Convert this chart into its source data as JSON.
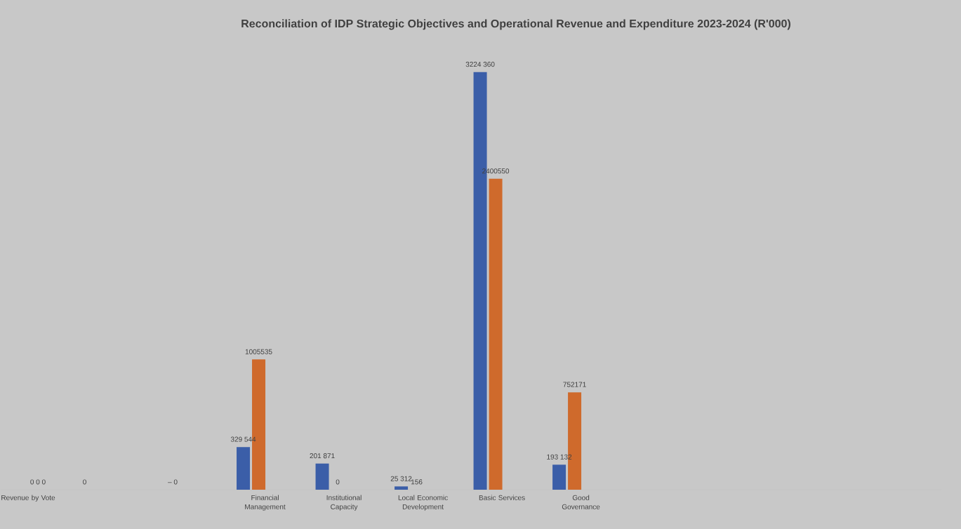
{
  "chart_data": {
    "type": "bar",
    "title": "Reconciliation of IDP Strategic Objectives and Operational Revenue and Expenditure 2023-2024 (R'000)",
    "categories": [
      "Revenue by Vote",
      null,
      null,
      "Financial Management",
      "Institutional Capacity",
      "Local Economic Development",
      "Basic Services",
      "Good Governance",
      null,
      null,
      null,
      null
    ],
    "series": [
      {
        "color": "#3b5ea8",
        "values": [
          0,
          0,
          0,
          329544,
          201871,
          25312,
          3224360,
          193132,
          null,
          null,
          null,
          null
        ],
        "value_labels": [
          null,
          null,
          null,
          "329 544",
          "201 871",
          "25 312",
          "3224 360",
          "193 132",
          null,
          null,
          null,
          null
        ]
      },
      {
        "color": "#cf6a2c",
        "values": [
          0,
          null,
          0,
          1005535,
          0,
          156,
          2400550,
          752171,
          null,
          null,
          null,
          null
        ],
        "value_labels": [
          null,
          null,
          null,
          "1005535",
          null,
          "156",
          "2400550",
          "752171",
          null,
          null,
          null,
          null
        ]
      }
    ],
    "annotations": [
      "0 0 0",
      "0",
      "– 0",
      "0"
    ]
  }
}
